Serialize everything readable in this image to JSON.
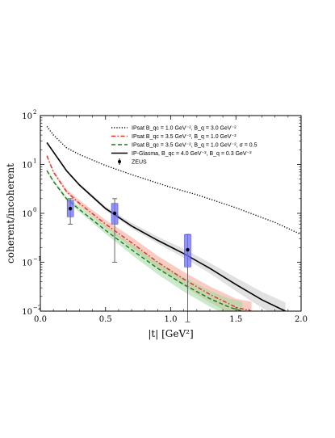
{
  "chart_data": {
    "type": "line",
    "xlabel": "|t|  [GeV²]",
    "ylabel": "coherent/incoherent",
    "xlim": [
      0.0,
      2.0
    ],
    "ylim_log10": [
      -2,
      2
    ],
    "yscale": "log",
    "grid": false,
    "legend_position": "top-right",
    "x_ticks": [
      0.0,
      0.5,
      1.0,
      1.5,
      2.0
    ],
    "x_tick_labels": [
      "0.0",
      "0.5",
      "1.0",
      "1.5",
      "2.0"
    ],
    "y_ticks": [
      0.01,
      0.1,
      1,
      10,
      100
    ],
    "y_tick_labels": [
      "10",
      "10",
      "10",
      "10",
      "10"
    ],
    "y_tick_exponents": [
      "−2",
      "−1",
      "0",
      "1",
      "2"
    ],
    "series": [
      {
        "name": "IPsat B_qc = 1.0 GeV⁻², B_q = 3.0 GeV⁻²",
        "legend": "IPsat B_qc = 1.0 GeV⁻², B_q = 3.0 GeV⁻²",
        "color": "#000000",
        "style": "dotted",
        "x": [
          0.05,
          0.1,
          0.2,
          0.3,
          0.5,
          0.7,
          1.0,
          1.2,
          1.5,
          1.8,
          2.0
        ],
        "y": [
          60,
          40,
          22,
          16,
          9.5,
          6.2,
          3.4,
          2.4,
          1.3,
          0.65,
          0.37
        ]
      },
      {
        "name": "IPsat B_qc = 3.5 GeV⁻², B_q = 1.0 GeV⁻²",
        "legend": "IPsat B_qc = 3.5 GeV⁻², B_q = 1.0 GeV⁻²",
        "color": "#e03020",
        "style": "dashdot",
        "band_color": "#f4a090",
        "x": [
          0.05,
          0.1,
          0.2,
          0.3,
          0.5,
          0.7,
          0.9,
          1.1,
          1.3,
          1.5,
          1.62
        ],
        "y": [
          15,
          7,
          2.8,
          1.6,
          0.6,
          0.25,
          0.1,
          0.045,
          0.022,
          0.012,
          0.01
        ],
        "band": [
          0.06,
          0.08,
          0.11,
          0.16,
          0.22,
          0.3,
          0.35,
          0.4,
          0.45,
          0.5,
          0.55
        ]
      },
      {
        "name": "IPsat B_qc = 3.5 GeV⁻², B_q = 1.0 GeV⁻², σ = 0.5",
        "legend": "IPsat B_qc = 3.5 GeV⁻², B_q = 1.0 GeV⁻², σ = 0.5",
        "color": "#1a7a1a",
        "style": "dashed",
        "band_color": "#9fd89f",
        "x": [
          0.05,
          0.1,
          0.2,
          0.3,
          0.5,
          0.7,
          0.9,
          1.1,
          1.3,
          1.45,
          1.55
        ],
        "y": [
          7.5,
          4.5,
          2.0,
          1.2,
          0.45,
          0.18,
          0.075,
          0.035,
          0.018,
          0.012,
          0.01
        ],
        "band": [
          0.06,
          0.08,
          0.11,
          0.16,
          0.22,
          0.3,
          0.35,
          0.4,
          0.45,
          0.5,
          0.55
        ]
      },
      {
        "name": "IP-Glasma, B_qc = 4.0 GeV⁻², B_q = 0.3 GeV⁻²",
        "legend": "IP-Glasma, B_qc = 4.0 GeV⁻², B_q = 0.3 GeV⁻²",
        "color": "#000000",
        "style": "solid",
        "band_color": "#c8c8c8",
        "x": [
          0.05,
          0.1,
          0.2,
          0.3,
          0.5,
          0.7,
          0.9,
          1.1,
          1.3,
          1.5,
          1.7,
          1.88
        ],
        "y": [
          28,
          18,
          7.5,
          3.8,
          1.25,
          0.55,
          0.28,
          0.15,
          0.075,
          0.035,
          0.017,
          0.01
        ],
        "band": [
          0.04,
          0.05,
          0.06,
          0.08,
          0.12,
          0.16,
          0.2,
          0.25,
          0.3,
          0.38,
          0.45,
          0.5
        ]
      }
    ],
    "data_points": {
      "name": "ZEUS",
      "legend": "ZEUS",
      "color": "#000000",
      "box_color": "#6f6ff0",
      "errorbar_color": "#666666",
      "points": [
        {
          "x": 0.23,
          "y": 1.25,
          "err_low": 0.6,
          "err_high": 2.0,
          "box_low": 0.85,
          "box_high": 1.85
        },
        {
          "x": 0.57,
          "y": 1.0,
          "err_low": 0.1,
          "err_high": 2.0,
          "box_low": 0.6,
          "box_high": 1.6
        },
        {
          "x": 1.13,
          "y": 0.18,
          "err_low": 0.006,
          "err_high": 0.37,
          "box_low": 0.08,
          "box_high": 0.37
        }
      ]
    }
  }
}
